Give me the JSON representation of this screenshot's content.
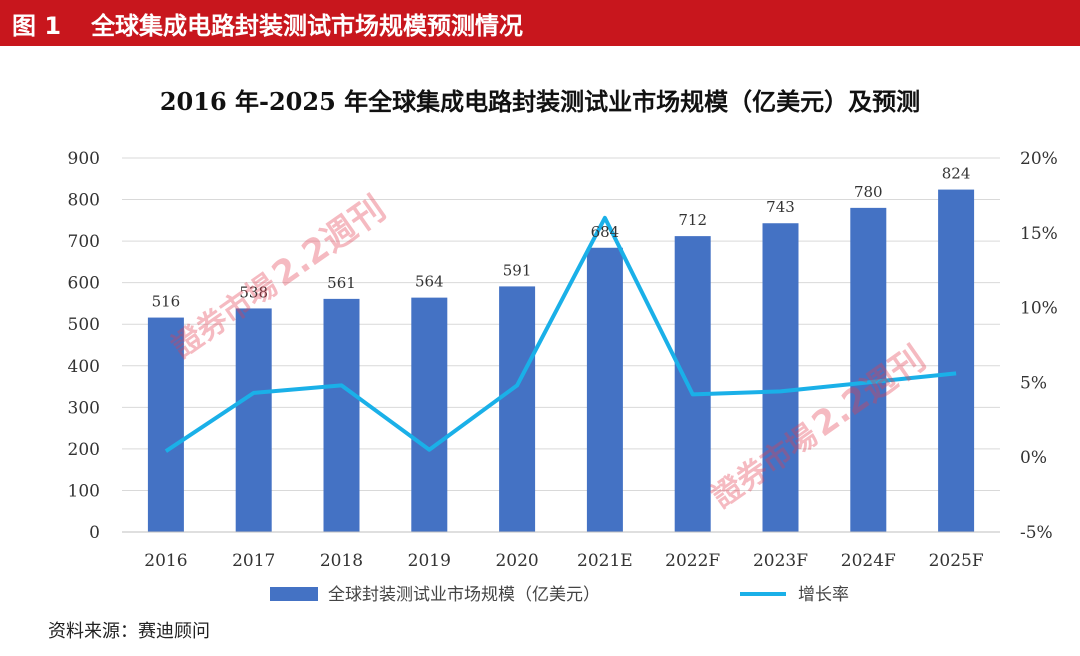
{
  "header": {
    "fig_label": "图 1",
    "title": "全球集成电路封装测试市场规模预测情况"
  },
  "chart_title": "2016 年-2025 年全球集成电路封装测试业市场规模（亿美元）及预测",
  "source": "资料来源：赛迪顾问",
  "watermark": {
    "text": "證券市場",
    "sub_text": "2.2週刊"
  },
  "colors": {
    "header_bg": "#c8161d",
    "bar": "#4472c4",
    "line": "#1ab0e8",
    "grid": "#d9d9d9",
    "watermark": "#e43c4f"
  },
  "chart_data": {
    "type": "bar",
    "categories": [
      "2016",
      "2017",
      "2018",
      "2019",
      "2020",
      "2021E",
      "2022F",
      "2023F",
      "2024F",
      "2025F"
    ],
    "series": [
      {
        "name": "全球封装测试业市场规模（亿美元）",
        "type": "bar",
        "axis": "left",
        "values": [
          516,
          538,
          561,
          564,
          591,
          684,
          712,
          743,
          780,
          824
        ],
        "labels": [
          "516",
          "538",
          "561",
          "564",
          "591",
          "684",
          "712",
          "743",
          "780",
          "824"
        ]
      },
      {
        "name": "增长率",
        "type": "line",
        "axis": "right",
        "values": [
          0.4,
          4.3,
          4.8,
          0.5,
          4.8,
          16.0,
          4.2,
          4.4,
          5.0,
          5.6
        ]
      }
    ],
    "left_axis": {
      "min": 0,
      "max": 900,
      "ticks": [
        "0",
        "100",
        "200",
        "300",
        "400",
        "500",
        "600",
        "700",
        "800",
        "900"
      ]
    },
    "right_axis": {
      "min": -5,
      "max": 20,
      "ticks": [
        "-5%",
        "0%",
        "5%",
        "10%",
        "15%",
        "20%"
      ]
    },
    "grid": true,
    "legend_position": "bottom"
  }
}
